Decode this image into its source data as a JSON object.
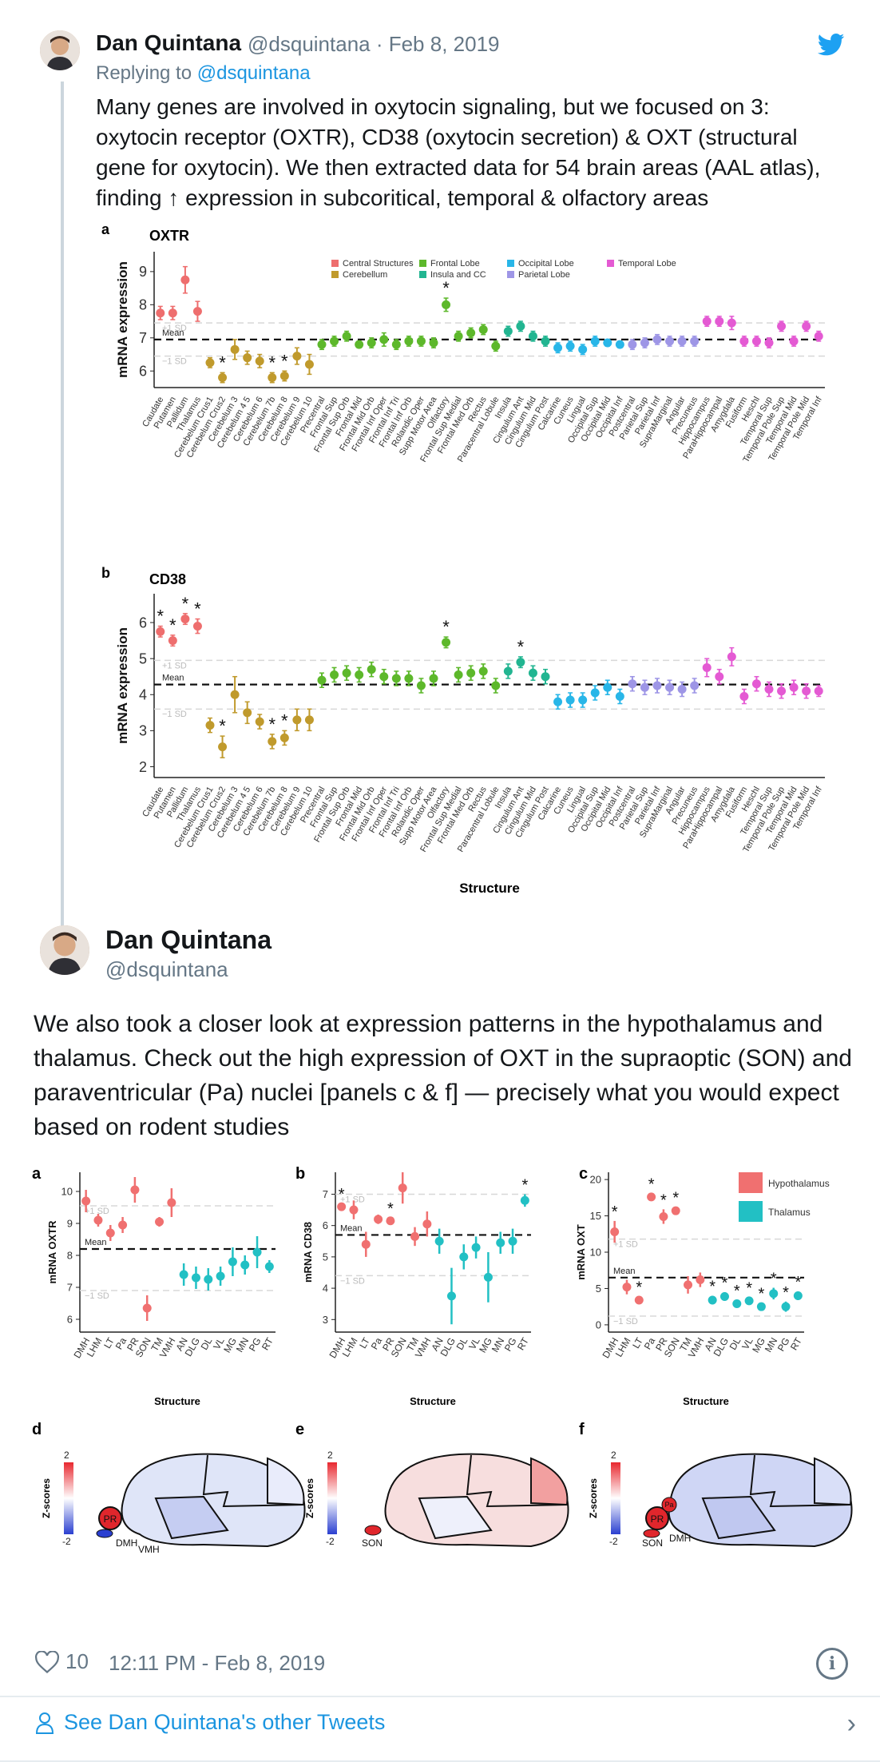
{
  "tweet1": {
    "author_name": "Dan Quintana",
    "meta": "@dsquintana · Feb 8, 2019",
    "replying_prefix": "Replying to ",
    "replying_handle": "@dsquintana",
    "text": "Many genes are involved in oxytocin signaling, but we focused on 3: oxytocin receptor (OXTR), CD38 (oxytocin secretion) & OXT (structural gene for oxytocin). We then extracted data for 54 brain areas (AAL atlas), finding ↑ expression in subcoritical, temporal & olfactory areas"
  },
  "tweet2": {
    "author_name": "Dan Quintana",
    "handle": "@dsquintana",
    "text": "We also took a closer look at expression patterns in the hypothalamus and thalamus. Check out the high expression of OXT in the supraoptic (SON) and paraventricular (Pa) nuclei [panels c & f] — precisely what you would expect based on rodent studies"
  },
  "footer": {
    "likes": "10",
    "timestamp": "12:11 PM - Feb 8, 2019",
    "see_more": "See Dan Quintana's other Tweets"
  },
  "icons": {
    "twitter": "twitter-bird-icon",
    "like": "heart-icon",
    "info": "info-icon",
    "person": "person-icon",
    "chevron": "chevron-right-icon"
  },
  "colors": {
    "accent": "#1b95e0",
    "Central Structures": "#ee6e6e",
    "Cerebellum": "#c09a2c",
    "Frontal Lobe": "#5db82b",
    "Insula and CC": "#22b591",
    "Occipital Lobe": "#28b6e8",
    "Parietal Lobe": "#9e96e6",
    "Temporal Lobe": "#e45ad3",
    "Hypothalamus": "#f07070",
    "Thalamus": "#22c0c4"
  },
  "chart_data": [
    {
      "type": "scatter",
      "panel": "a",
      "title": "OXTR",
      "ylabel": "mRNA expression",
      "ylim": [
        5.5,
        9.6
      ],
      "yticks": [
        6,
        7,
        8,
        9
      ],
      "mean": 6.95,
      "sd_plus": 7.45,
      "sd_minus": 6.45,
      "mean_label": "Mean",
      "sd_plus_label": "+1 SD",
      "sd_minus_label": "−1 SD",
      "legend": [
        "Central Structures",
        "Cerebellum",
        "Frontal Lobe",
        "Insula and CC",
        "Occipital Lobe",
        "Parietal Lobe",
        "Temporal Lobe"
      ],
      "categories": [
        "Caudate",
        "Putamen",
        "Pallidum",
        "Thalamus",
        "Cerebelum Crus1",
        "Cerebelum Crus2",
        "Cerebelum 3",
        "Cerebelum 4 5",
        "Cerebelum 6",
        "Cerebelum 7b",
        "Cerebelum 8",
        "Cerebelum 9",
        "Cerebelum 10",
        "Precentral",
        "Frontal Sup",
        "Frontal Sup Orb",
        "Frontal Mid",
        "Frontal Mid Orb",
        "Frontal Inf Oper",
        "Frontal Inf Tri",
        "Frontal Inf Orb",
        "Rolandic Oper",
        "Supp Motor Area",
        "Olfactory",
        "Frontal Sup Medial",
        "Frontal Med Orb",
        "Rectus",
        "Paracentral Lobule",
        "Insula",
        "Cingulum Ant",
        "Cingulum Mid",
        "Cingulum Post",
        "Calcarine",
        "Cuneus",
        "Lingual",
        "Occipital Sup",
        "Occipital Mid",
        "Occipital Inf",
        "Postcentral",
        "Parietal Sup",
        "Parietal Inf",
        "SupraMarginal",
        "Angular",
        "Precuneus",
        "Hippocampus",
        "ParaHippocampal",
        "Amygdala",
        "Fusiform",
        "Heschl",
        "Temporal Sup",
        "Temporal Pole Sup",
        "Temporal Mid",
        "Temporal Pole Mid",
        "Temporal Inf"
      ],
      "groups": [
        "Central Structures",
        "Central Structures",
        "Central Structures",
        "Central Structures",
        "Cerebellum",
        "Cerebellum",
        "Cerebellum",
        "Cerebellum",
        "Cerebellum",
        "Cerebellum",
        "Cerebellum",
        "Cerebellum",
        "Cerebellum",
        "Frontal Lobe",
        "Frontal Lobe",
        "Frontal Lobe",
        "Frontal Lobe",
        "Frontal Lobe",
        "Frontal Lobe",
        "Frontal Lobe",
        "Frontal Lobe",
        "Frontal Lobe",
        "Frontal Lobe",
        "Frontal Lobe",
        "Frontal Lobe",
        "Frontal Lobe",
        "Frontal Lobe",
        "Frontal Lobe",
        "Insula and CC",
        "Insula and CC",
        "Insula and CC",
        "Insula and CC",
        "Occipital Lobe",
        "Occipital Lobe",
        "Occipital Lobe",
        "Occipital Lobe",
        "Occipital Lobe",
        "Occipital Lobe",
        "Parietal Lobe",
        "Parietal Lobe",
        "Parietal Lobe",
        "Parietal Lobe",
        "Parietal Lobe",
        "Parietal Lobe",
        "Temporal Lobe",
        "Temporal Lobe",
        "Temporal Lobe",
        "Temporal Lobe",
        "Temporal Lobe",
        "Temporal Lobe",
        "Temporal Lobe",
        "Temporal Lobe",
        "Temporal Lobe",
        "Temporal Lobe"
      ],
      "values": [
        7.75,
        7.75,
        8.75,
        7.8,
        6.25,
        5.8,
        6.65,
        6.4,
        6.3,
        5.8,
        5.85,
        6.45,
        6.2,
        6.8,
        6.9,
        7.05,
        6.8,
        6.85,
        6.95,
        6.8,
        6.9,
        6.9,
        6.85,
        8.0,
        7.05,
        7.15,
        7.25,
        6.75,
        7.2,
        7.35,
        7.05,
        6.9,
        6.7,
        6.75,
        6.65,
        6.9,
        6.85,
        6.8,
        6.8,
        6.85,
        6.95,
        6.9,
        6.9,
        6.9,
        7.5,
        7.5,
        7.45,
        6.9,
        6.9,
        6.85,
        7.35,
        6.9,
        7.35,
        7.05
      ],
      "errors": [
        0.2,
        0.2,
        0.4,
        0.3,
        0.15,
        0.15,
        0.3,
        0.2,
        0.2,
        0.15,
        0.15,
        0.25,
        0.3,
        0.15,
        0.15,
        0.15,
        0.1,
        0.15,
        0.2,
        0.15,
        0.15,
        0.15,
        0.15,
        0.2,
        0.15,
        0.15,
        0.15,
        0.15,
        0.15,
        0.15,
        0.15,
        0.15,
        0.15,
        0.15,
        0.15,
        0.15,
        0.1,
        0.1,
        0.15,
        0.15,
        0.15,
        0.15,
        0.15,
        0.15,
        0.15,
        0.15,
        0.2,
        0.15,
        0.15,
        0.15,
        0.15,
        0.15,
        0.15,
        0.15
      ],
      "stars": [
        5,
        9,
        10,
        23
      ]
    },
    {
      "type": "scatter",
      "panel": "b",
      "title": "CD38",
      "ylabel": "mRNA expression",
      "xlabel": "Structure",
      "ylim": [
        1.7,
        6.8
      ],
      "yticks": [
        2,
        3,
        4,
        5,
        6
      ],
      "mean": 4.28,
      "sd_plus": 4.95,
      "sd_minus": 3.6,
      "mean_label": "Mean",
      "sd_plus_label": "+1 SD",
      "sd_minus_label": "−1 SD",
      "categories": [
        "Caudate",
        "Putamen",
        "Pallidum",
        "Thalamus",
        "Cerebelum Crus1",
        "Cerebelum Crus2",
        "Cerebelum 3",
        "Cerebelum 4 5",
        "Cerebelum 6",
        "Cerebelum 7b",
        "Cerebelum 8",
        "Cerebelum 9",
        "Cerebelum 10",
        "Precentral",
        "Frontal Sup",
        "Frontal Sup Orb",
        "Frontal Mid",
        "Frontal Mid Orb",
        "Frontal Inf Oper",
        "Frontal Inf Tri",
        "Frontal Inf Orb",
        "Rolandic Oper",
        "Supp Motor Area",
        "Olfactory",
        "Frontal Sup Medial",
        "Frontal Med Orb",
        "Rectus",
        "Paracentral Lobule",
        "Insula",
        "Cingulum Ant",
        "Cingulum Mid",
        "Cingulum Post",
        "Calcarine",
        "Cuneus",
        "Lingual",
        "Occipital Sup",
        "Occipital Mid",
        "Occipital Inf",
        "Postcentral",
        "Parietal Sup",
        "Parietal Inf",
        "SupraMarginal",
        "Angular",
        "Precuneus",
        "Hippocampus",
        "ParaHippocampal",
        "Amygdala",
        "Fusiform",
        "Heschl",
        "Temporal Sup",
        "Temporal Pole Sup",
        "Temporal Mid",
        "Temporal Pole Mid",
        "Temporal Inf"
      ],
      "values": [
        5.75,
        5.5,
        6.1,
        5.9,
        3.15,
        2.55,
        4.0,
        3.5,
        3.25,
        2.7,
        2.8,
        3.3,
        3.3,
        4.4,
        4.55,
        4.6,
        4.55,
        4.7,
        4.5,
        4.45,
        4.45,
        4.25,
        4.45,
        5.45,
        4.55,
        4.6,
        4.65,
        4.25,
        4.65,
        4.9,
        4.6,
        4.5,
        3.8,
        3.85,
        3.85,
        4.05,
        4.2,
        3.95,
        4.3,
        4.2,
        4.25,
        4.2,
        4.15,
        4.25,
        4.75,
        4.5,
        5.05,
        3.95,
        4.3,
        4.15,
        4.1,
        4.2,
        4.1,
        4.1
      ],
      "errors": [
        0.15,
        0.15,
        0.15,
        0.2,
        0.2,
        0.3,
        0.5,
        0.3,
        0.2,
        0.2,
        0.2,
        0.3,
        0.3,
        0.2,
        0.2,
        0.2,
        0.2,
        0.2,
        0.2,
        0.2,
        0.2,
        0.2,
        0.2,
        0.15,
        0.2,
        0.2,
        0.2,
        0.2,
        0.2,
        0.15,
        0.2,
        0.2,
        0.2,
        0.2,
        0.2,
        0.2,
        0.2,
        0.2,
        0.2,
        0.2,
        0.2,
        0.2,
        0.2,
        0.2,
        0.25,
        0.2,
        0.25,
        0.2,
        0.2,
        0.2,
        0.2,
        0.2,
        0.2,
        0.15
      ],
      "stars": [
        0,
        1,
        2,
        3,
        5,
        9,
        10,
        23,
        29
      ]
    },
    {
      "type": "scatter",
      "panel": "a",
      "ylabel": "mRNA OXTR",
      "xlabel": "Structure",
      "ylim": [
        5.6,
        10.6
      ],
      "yticks": [
        6,
        7,
        8,
        9,
        10
      ],
      "mean": 8.2,
      "sd_plus": 9.55,
      "sd_minus": 6.9,
      "mean_label": "Mean",
      "sd_plus_label": "+1 SD",
      "sd_minus_label": "−1 SD",
      "categories": [
        "DMH",
        "LHM",
        "LT",
        "Pa",
        "PR",
        "SON",
        "TM",
        "VMH",
        "AN",
        "DLG",
        "DL",
        "VL",
        "MG",
        "MN",
        "PG",
        "RT"
      ],
      "values": [
        9.7,
        9.1,
        8.7,
        8.95,
        10.05,
        6.35,
        9.05,
        9.65,
        7.4,
        7.3,
        7.25,
        7.35,
        7.8,
        7.7,
        8.1,
        7.65
      ],
      "errors": [
        0.35,
        0.2,
        0.25,
        0.25,
        0.4,
        0.4,
        0.15,
        0.45,
        0.35,
        0.35,
        0.35,
        0.3,
        0.45,
        0.3,
        0.5,
        0.2
      ],
      "stars": []
    },
    {
      "type": "scatter",
      "panel": "b",
      "ylabel": "mRNA CD38",
      "xlabel": "Structure",
      "ylim": [
        2.6,
        7.7
      ],
      "yticks": [
        3,
        4,
        5,
        6,
        7
      ],
      "mean": 5.7,
      "sd_plus": 7.0,
      "sd_minus": 4.4,
      "mean_label": "Mean",
      "sd_plus_label": "+1 SD",
      "sd_minus_label": "−1 SD",
      "categories": [
        "DMH",
        "LHM",
        "LT",
        "Pa",
        "PR",
        "SON",
        "TM",
        "VMH",
        "AN",
        "DLG",
        "DL",
        "VL",
        "MG",
        "MN",
        "PG",
        "RT"
      ],
      "values": [
        6.6,
        6.5,
        5.4,
        6.2,
        6.15,
        7.2,
        5.65,
        6.05,
        5.5,
        3.75,
        5.0,
        5.3,
        4.35,
        5.45,
        5.5,
        6.8
      ],
      "errors": [
        0.1,
        0.3,
        0.4,
        0.15,
        0.1,
        0.5,
        0.3,
        0.4,
        0.4,
        0.9,
        0.4,
        0.35,
        0.8,
        0.35,
        0.4,
        0.2
      ],
      "stars": [
        0,
        4,
        15
      ]
    },
    {
      "type": "scatter",
      "panel": "c",
      "ylabel": "mRNA OXT",
      "xlabel": "Structure",
      "ylim": [
        -1,
        21
      ],
      "yticks": [
        0,
        5,
        10,
        15,
        20
      ],
      "mean": 6.5,
      "sd_plus": 11.8,
      "sd_minus": 1.2,
      "mean_label": "Mean",
      "sd_plus_label": "+1 SD",
      "sd_minus_label": "−1 SD",
      "legend": [
        "Hypothalamus",
        "Thalamus"
      ],
      "categories": [
        "DMH",
        "LHM",
        "LT",
        "Pa",
        "PR",
        "SON",
        "TM",
        "VMH",
        "AN",
        "DLG",
        "DL",
        "VL",
        "MG",
        "MN",
        "PG",
        "RT"
      ],
      "values": [
        12.8,
        5.2,
        3.4,
        17.6,
        14.9,
        15.7,
        5.5,
        6.2,
        3.4,
        3.9,
        2.9,
        3.3,
        2.5,
        4.3,
        2.5,
        4.0
      ],
      "errors": [
        1.5,
        1.0,
        0.5,
        0.5,
        1.0,
        0.5,
        1.2,
        1.0,
        0.6,
        0.6,
        0.5,
        0.5,
        0.5,
        0.8,
        0.7,
        0.6
      ],
      "stars": [
        0,
        2,
        3,
        4,
        5,
        8,
        9,
        10,
        11,
        12,
        13,
        14,
        15
      ]
    }
  ],
  "brain_panels": [
    {
      "label": "d",
      "scale_label": "Z-scores",
      "scale_max": "2",
      "scale_min": "-2",
      "regions": [
        "PR",
        "DMH",
        "VMH"
      ]
    },
    {
      "label": "e",
      "scale_label": "Z-scores",
      "scale_max": "2",
      "scale_min": "-2",
      "regions": [
        "SON"
      ]
    },
    {
      "label": "f",
      "scale_label": "Z-scores",
      "scale_max": "2",
      "scale_min": "-2",
      "regions": [
        "PR",
        "Pa",
        "SON",
        "DMH"
      ]
    }
  ]
}
